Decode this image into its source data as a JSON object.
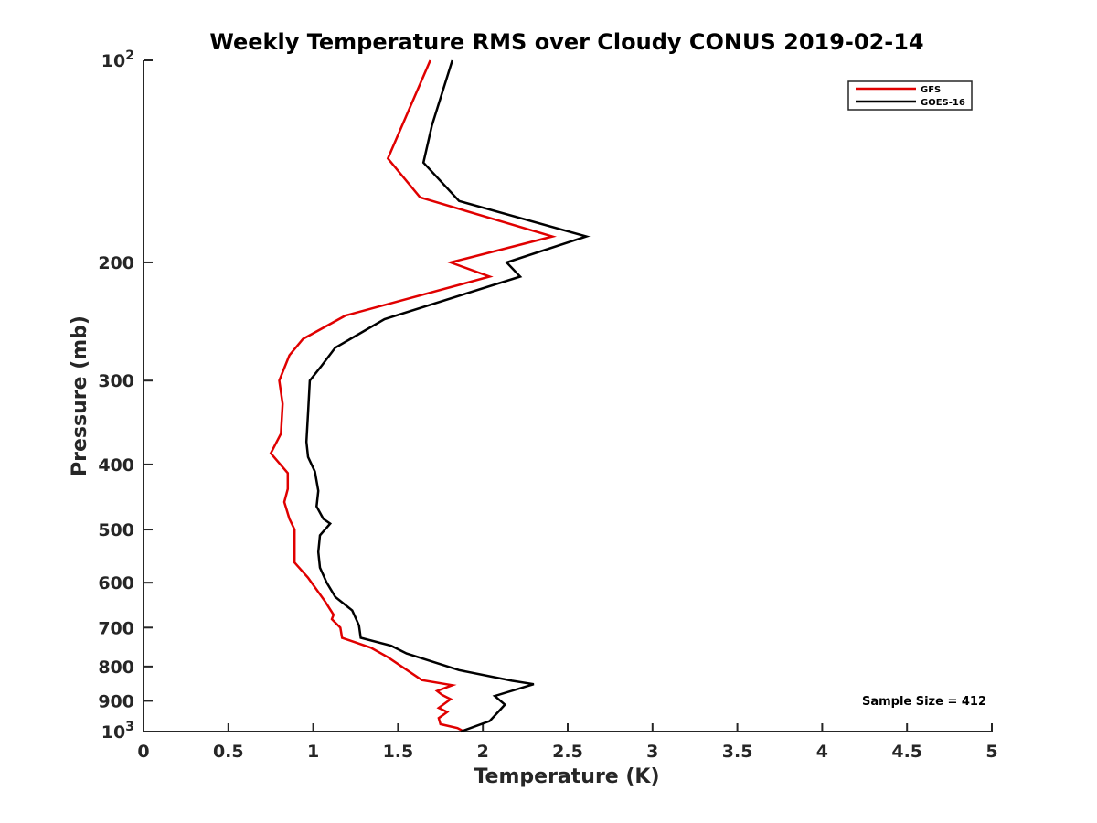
{
  "chart_data": {
    "type": "line",
    "title": "Weekly Temperature RMS over Cloudy CONUS 2019-02-14",
    "xlabel": "Temperature (K)",
    "ylabel": "Pressure (mb)",
    "xlim": [
      0,
      5
    ],
    "ylim": [
      100,
      1000
    ],
    "y_scale": "log",
    "y_reversed": true,
    "x_ticks": [
      0,
      0.5,
      1,
      1.5,
      2,
      2.5,
      3,
      3.5,
      4,
      4.5,
      5
    ],
    "x_tick_labels": [
      "0",
      "0.5",
      "1",
      "1.5",
      "2",
      "2.5",
      "3",
      "3.5",
      "4",
      "4.5",
      "5"
    ],
    "y_ticks": [
      100,
      200,
      300,
      400,
      500,
      600,
      700,
      800,
      900,
      1000
    ],
    "y_tick_labels": [
      {
        "base": "10",
        "exp": "2"
      },
      {
        "base": "200",
        "exp": ""
      },
      {
        "base": "300",
        "exp": ""
      },
      {
        "base": "400",
        "exp": ""
      },
      {
        "base": "500",
        "exp": ""
      },
      {
        "base": "600",
        "exp": ""
      },
      {
        "base": "700",
        "exp": ""
      },
      {
        "base": "800",
        "exp": ""
      },
      {
        "base": "900",
        "exp": ""
      },
      {
        "base": "10",
        "exp": "3"
      }
    ],
    "grid": false,
    "legend_position": "top-right",
    "annotation": "Sample Size = 412",
    "series": [
      {
        "name": "GFS",
        "color": "#e00000",
        "points": [
          [
            1.69,
            100
          ],
          [
            1.44,
            140
          ],
          [
            1.63,
            160
          ],
          [
            2.41,
            183
          ],
          [
            1.81,
            200
          ],
          [
            2.04,
            210
          ],
          [
            1.19,
            240
          ],
          [
            0.94,
            260
          ],
          [
            0.86,
            275
          ],
          [
            0.8,
            300
          ],
          [
            0.82,
            325
          ],
          [
            0.81,
            360
          ],
          [
            0.75,
            385
          ],
          [
            0.85,
            412
          ],
          [
            0.85,
            435
          ],
          [
            0.83,
            455
          ],
          [
            0.86,
            482
          ],
          [
            0.89,
            500
          ],
          [
            0.89,
            535
          ],
          [
            0.89,
            560
          ],
          [
            0.97,
            590
          ],
          [
            1.07,
            640
          ],
          [
            1.12,
            670
          ],
          [
            1.11,
            680
          ],
          [
            1.16,
            700
          ],
          [
            1.17,
            725
          ],
          [
            1.34,
            750
          ],
          [
            1.44,
            775
          ],
          [
            1.64,
            838
          ],
          [
            1.82,
            853
          ],
          [
            1.73,
            870
          ],
          [
            1.76,
            882
          ],
          [
            1.81,
            895
          ],
          [
            1.74,
            922
          ],
          [
            1.79,
            935
          ],
          [
            1.74,
            955
          ],
          [
            1.75,
            975
          ],
          [
            1.85,
            988
          ],
          [
            1.89,
            1000
          ]
        ]
      },
      {
        "name": "GOES-16",
        "color": "#000000",
        "points": [
          [
            1.82,
            100
          ],
          [
            1.7,
            125
          ],
          [
            1.65,
            142
          ],
          [
            1.86,
            162
          ],
          [
            2.61,
            183
          ],
          [
            2.14,
            200
          ],
          [
            2.22,
            210
          ],
          [
            1.42,
            243
          ],
          [
            1.13,
            268
          ],
          [
            1.05,
            285
          ],
          [
            0.98,
            300
          ],
          [
            0.97,
            335
          ],
          [
            0.96,
            370
          ],
          [
            0.97,
            390
          ],
          [
            1.01,
            410
          ],
          [
            1.03,
            438
          ],
          [
            1.02,
            462
          ],
          [
            1.06,
            482
          ],
          [
            1.1,
            490
          ],
          [
            1.04,
            510
          ],
          [
            1.03,
            540
          ],
          [
            1.04,
            570
          ],
          [
            1.08,
            600
          ],
          [
            1.13,
            630
          ],
          [
            1.23,
            660
          ],
          [
            1.27,
            695
          ],
          [
            1.28,
            725
          ],
          [
            1.46,
            745
          ],
          [
            1.55,
            765
          ],
          [
            1.86,
            810
          ],
          [
            2.17,
            840
          ],
          [
            2.3,
            850
          ],
          [
            2.07,
            885
          ],
          [
            2.13,
            912
          ],
          [
            2.09,
            935
          ],
          [
            2.04,
            965
          ],
          [
            1.87,
            1000
          ]
        ]
      }
    ]
  }
}
